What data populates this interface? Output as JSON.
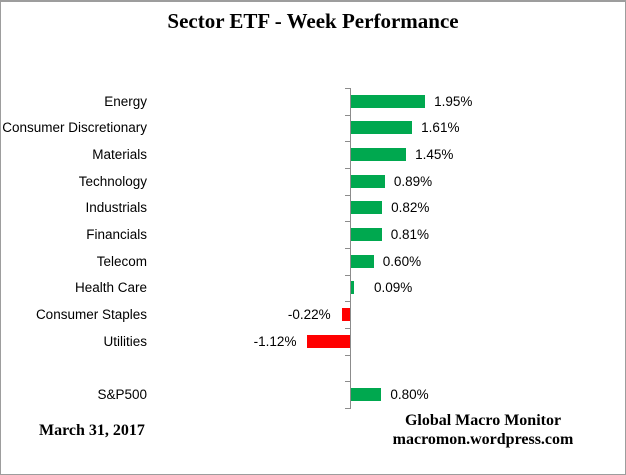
{
  "title": "Sector ETF - Week Performance",
  "footer": {
    "date": "March 31, 2017",
    "source_line1": "Global Macro Monitor",
    "source_line2": "macromon.wordpress.com"
  },
  "chart_data": {
    "type": "bar",
    "orientation": "horizontal",
    "title": "Sector ETF - Week Performance",
    "categories": [
      "Energy",
      "Consumer Discretionary",
      "Materials",
      "Technology",
      "Industrials",
      "Financials",
      "Telecom",
      "Health Care",
      "Consumer Staples",
      "Utilities",
      "S&P500"
    ],
    "values": [
      1.95,
      1.61,
      1.45,
      0.89,
      0.82,
      0.81,
      0.6,
      0.09,
      -0.22,
      -1.12,
      0.8
    ],
    "value_labels": [
      "1.95%",
      "1.61%",
      "1.45%",
      "0.89%",
      "0.82%",
      "0.81%",
      "0.60%",
      "0.09%",
      "-0.22%",
      "-1.12%",
      "0.80%"
    ],
    "separator_before": "S&P500",
    "xlabel": "",
    "ylabel": "",
    "x_axis_tick_labels_visible": false,
    "gridlines": false,
    "legend": "none",
    "data_label_position": "outside-end",
    "colors": {
      "positive": "#00A84F",
      "negative": "#FF0000",
      "axis": "#8c8c8c",
      "text": "#000000"
    }
  }
}
